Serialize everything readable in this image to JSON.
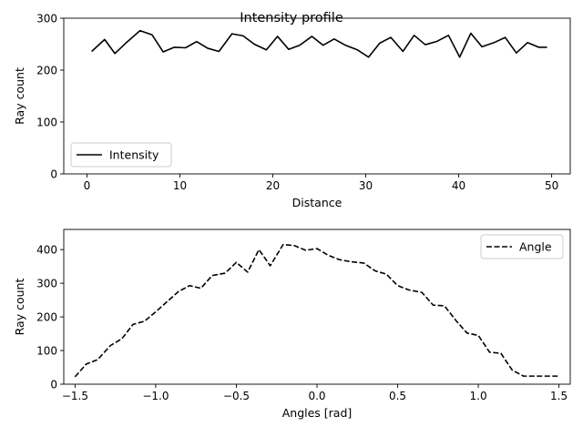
{
  "figure": {
    "suptitle": "Intensity profile"
  },
  "chart_data": [
    {
      "type": "line",
      "xlabel": "Distance",
      "ylabel": "Ray count",
      "xlim": [
        -2.5,
        52.0
      ],
      "ylim": [
        0,
        300
      ],
      "xticks": [
        0,
        10,
        20,
        30,
        40,
        50
      ],
      "yticks": [
        0,
        100,
        200,
        300
      ],
      "xtick_labels": [
        "0",
        "10",
        "20",
        "30",
        "40",
        "50"
      ],
      "ytick_labels": [
        "0",
        "100",
        "200",
        "300"
      ],
      "grid": false,
      "legend": "lower left",
      "series": [
        {
          "name": "Intensity",
          "style": "solid",
          "color": "#000000",
          "x": [
            0.5,
            1.9,
            3.0,
            4.3,
            5.7,
            7.0,
            8.2,
            9.4,
            10.6,
            11.8,
            13.0,
            14.2,
            15.6,
            16.8,
            18.0,
            19.3,
            20.5,
            21.7,
            22.9,
            24.2,
            25.4,
            26.6,
            27.8,
            29.1,
            30.3,
            31.5,
            32.7,
            34.0,
            35.2,
            36.4,
            37.6,
            38.9,
            40.1,
            41.3,
            42.5,
            43.8,
            45.0,
            46.2,
            47.4,
            48.6,
            49.5
          ],
          "y": [
            236,
            259,
            232,
            254,
            276,
            268,
            235,
            244,
            243,
            255,
            242,
            236,
            270,
            266,
            250,
            239,
            265,
            240,
            248,
            265,
            248,
            260,
            248,
            239,
            225,
            252,
            263,
            236,
            267,
            249,
            255,
            267,
            225,
            271,
            245,
            253,
            263,
            233,
            253,
            244,
            244
          ]
        }
      ]
    },
    {
      "type": "line",
      "xlabel": "Angles [rad]",
      "ylabel": "Ray count",
      "xlim": [
        -1.57,
        1.57
      ],
      "ylim": [
        0,
        460
      ],
      "xticks": [
        -1.5,
        -1.0,
        -0.5,
        0.0,
        0.5,
        1.0,
        1.5
      ],
      "yticks": [
        0,
        100,
        200,
        300,
        400
      ],
      "xtick_labels": [
        "−1.5",
        "−1.0",
        "−0.5",
        "0.0",
        "0.5",
        "1.0",
        "1.5"
      ],
      "ytick_labels": [
        "0",
        "100",
        "200",
        "300",
        "400"
      ],
      "grid": false,
      "legend": "upper right",
      "series": [
        {
          "name": "Angle",
          "style": "dashed",
          "color": "#000000",
          "x": [
            -1.5,
            -1.43,
            -1.36,
            -1.28,
            -1.21,
            -1.14,
            -1.07,
            -1.0,
            -0.93,
            -0.86,
            -0.79,
            -0.72,
            -0.65,
            -0.57,
            -0.5,
            -0.43,
            -0.36,
            -0.29,
            -0.21,
            -0.14,
            -0.07,
            0.0,
            0.07,
            0.14,
            0.21,
            0.29,
            0.36,
            0.43,
            0.5,
            0.57,
            0.65,
            0.72,
            0.79,
            0.86,
            0.93,
            1.0,
            1.07,
            1.14,
            1.21,
            1.28,
            1.36,
            1.43,
            1.5
          ],
          "y": [
            22,
            60,
            73,
            115,
            135,
            178,
            187,
            215,
            245,
            275,
            293,
            285,
            323,
            330,
            362,
            333,
            400,
            352,
            415,
            412,
            398,
            403,
            383,
            370,
            364,
            360,
            337,
            327,
            293,
            280,
            273,
            235,
            233,
            190,
            152,
            145,
            95,
            92,
            42,
            24,
            24,
            24,
            24
          ]
        }
      ]
    }
  ]
}
